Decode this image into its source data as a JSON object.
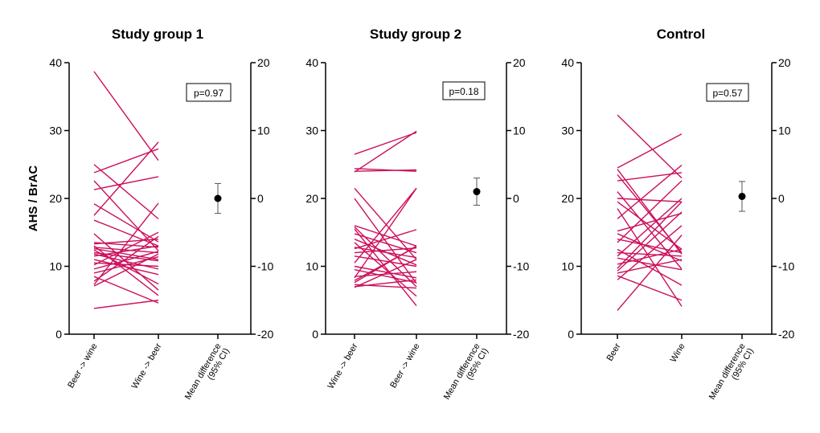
{
  "figure": {
    "ylabel": "AHS / BrAC",
    "line_color": "#cc0f5c"
  },
  "chart_data": [
    {
      "type": "line",
      "title": "Study group 1",
      "categories": [
        "Beer -> wine",
        "Wine -> beer",
        "Mean difference\n(95% CI)"
      ],
      "left_axis": {
        "ylim": [
          0,
          40
        ],
        "ticks": [
          0,
          10,
          20,
          30,
          40
        ]
      },
      "right_axis": {
        "ylim": [
          -20,
          20
        ],
        "ticks": [
          -20,
          -10,
          0,
          10,
          20
        ]
      },
      "p_value": "p=0.97",
      "paired_values": [
        [
          38.7,
          25.6
        ],
        [
          25.0,
          17.0
        ],
        [
          23.8,
          27.3
        ],
        [
          22.6,
          12.3
        ],
        [
          21.3,
          23.2
        ],
        [
          19.2,
          13.6
        ],
        [
          17.5,
          28.3
        ],
        [
          16.8,
          13.0
        ],
        [
          14.8,
          6.5
        ],
        [
          13.5,
          12.8
        ],
        [
          13.3,
          14.0
        ],
        [
          13.0,
          5.7
        ],
        [
          12.8,
          12.0
        ],
        [
          12.6,
          11.0
        ],
        [
          12.4,
          7.4
        ],
        [
          12.0,
          10.8
        ],
        [
          11.8,
          9.6
        ],
        [
          11.5,
          13.0
        ],
        [
          11.0,
          8.8
        ],
        [
          10.5,
          10.0
        ],
        [
          10.2,
          15.0
        ],
        [
          9.6,
          12.2
        ],
        [
          9.0,
          11.4
        ],
        [
          8.5,
          4.6
        ],
        [
          7.8,
          14.4
        ],
        [
          7.3,
          19.3
        ],
        [
          7.1,
          11.8
        ],
        [
          3.8,
          5.0
        ]
      ],
      "mean_difference": {
        "mean": 0.0,
        "ci": [
          -2.2,
          2.2
        ]
      }
    },
    {
      "type": "line",
      "title": "Study group 2",
      "categories": [
        "Wine -> beer",
        "Beer -> wine",
        "Mean difference\n(95% CI)"
      ],
      "left_axis": {
        "ylim": [
          0,
          40
        ],
        "ticks": [
          0,
          10,
          20,
          30,
          40
        ]
      },
      "right_axis": {
        "ylim": [
          -20,
          20
        ],
        "ticks": [
          -20,
          -10,
          0,
          10,
          20
        ]
      },
      "p_value": "p=0.18",
      "paired_values": [
        [
          26.5,
          29.7
        ],
        [
          24.4,
          24.0
        ],
        [
          24.0,
          24.2
        ],
        [
          23.9,
          29.9
        ],
        [
          21.5,
          11.0
        ],
        [
          20.0,
          7.5
        ],
        [
          16.0,
          13.0
        ],
        [
          15.8,
          7.0
        ],
        [
          15.5,
          4.2
        ],
        [
          14.8,
          12.0
        ],
        [
          14.0,
          10.2
        ],
        [
          13.5,
          5.6
        ],
        [
          12.8,
          11.3
        ],
        [
          12.6,
          15.4
        ],
        [
          12.0,
          12.7
        ],
        [
          11.5,
          10.0
        ],
        [
          10.5,
          21.5
        ],
        [
          10.0,
          8.3
        ],
        [
          9.5,
          7.6
        ],
        [
          8.5,
          9.2
        ],
        [
          8.3,
          21.5
        ],
        [
          7.9,
          12.9
        ],
        [
          7.6,
          13.0
        ],
        [
          7.3,
          6.8
        ],
        [
          7.0,
          8.0
        ],
        [
          6.9,
          11.0
        ]
      ],
      "mean_difference": {
        "mean": 1.0,
        "ci": [
          -1.0,
          3.0
        ]
      }
    },
    {
      "type": "line",
      "title": "Control",
      "categories": [
        "Beer",
        "Wine",
        "Mean difference\n(95% CI)"
      ],
      "left_axis": {
        "ylim": [
          0,
          40
        ],
        "ticks": [
          0,
          10,
          20,
          30,
          40
        ]
      },
      "right_axis": {
        "ylim": [
          -20,
          20
        ],
        "ticks": [
          -20,
          -10,
          0,
          10,
          20
        ]
      },
      "p_value": "p=0.57",
      "paired_values": [
        [
          32.3,
          23.0
        ],
        [
          24.5,
          29.5
        ],
        [
          24.3,
          11.8
        ],
        [
          23.5,
          12.0
        ],
        [
          22.6,
          23.8
        ],
        [
          21.0,
          9.6
        ],
        [
          20.0,
          19.5
        ],
        [
          19.5,
          12.5
        ],
        [
          18.5,
          4.1
        ],
        [
          17.0,
          24.9
        ],
        [
          15.2,
          17.8
        ],
        [
          14.8,
          10.8
        ],
        [
          14.0,
          12.0
        ],
        [
          13.5,
          22.6
        ],
        [
          12.5,
          7.2
        ],
        [
          12.0,
          11.5
        ],
        [
          11.5,
          20.0
        ],
        [
          11.2,
          9.5
        ],
        [
          10.3,
          12.5
        ],
        [
          9.7,
          19.5
        ],
        [
          9.3,
          18.0
        ],
        [
          9.0,
          11.0
        ],
        [
          8.6,
          5.0
        ],
        [
          8.0,
          16.0
        ],
        [
          3.5,
          14.6
        ]
      ],
      "mean_difference": {
        "mean": 0.3,
        "ci": [
          -1.9,
          2.5
        ]
      }
    }
  ]
}
